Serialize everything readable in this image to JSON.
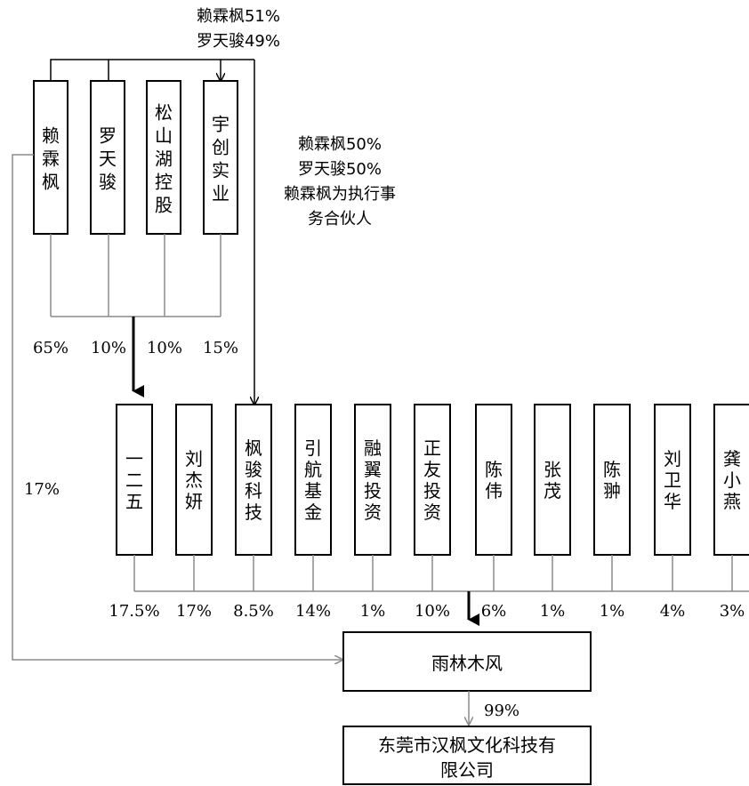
{
  "shareholders_top": [
    {
      "id": "laiminfeng",
      "name": "赖霖枫"
    },
    {
      "id": "luotianjun",
      "name": "罗天骏"
    },
    {
      "id": "songshanhu",
      "name": "松山湖控股"
    },
    {
      "id": "yuchuang",
      "name": "宇创实业"
    }
  ],
  "yuchuang_note": [
    "赖霖枫51%",
    "罗天骏49%"
  ],
  "fengjun_note": [
    "赖霖枫50%",
    "罗天骏50%",
    "赖霖枫为执行事",
    "务合伙人"
  ],
  "top_pcts": [
    "65%",
    "10%",
    "10%",
    "15%"
  ],
  "direct_pct": "17%",
  "shareholders_mid": [
    {
      "id": "yieryiwu",
      "name": "一二五",
      "pct": "17.5%"
    },
    {
      "id": "liujieyan",
      "name": "刘杰妍",
      "pct": "17%"
    },
    {
      "id": "fengjun",
      "name": "枫骏科技",
      "pct": "8.5%"
    },
    {
      "id": "yinhang",
      "name": "引航基金",
      "pct": "14%"
    },
    {
      "id": "rongyi",
      "name": "融翼投资",
      "pct": "1%"
    },
    {
      "id": "zhengyou",
      "name": "正友投资",
      "pct": "10%"
    },
    {
      "id": "chenwei",
      "name": "陈伟",
      "pct": "6%"
    },
    {
      "id": "zhangmao",
      "name": "张茂",
      "pct": "1%"
    },
    {
      "id": "chenpan",
      "name": "陈翀",
      "pct": "1%"
    },
    {
      "id": "liuweihua",
      "name": "刘卫华",
      "pct": "4%"
    },
    {
      "id": "gongxiaoyan",
      "name": "龚小燕",
      "pct": "3%"
    }
  ],
  "yulin": {
    "name": "雨林木风"
  },
  "yulin_pct": "99%",
  "hanfeng": {
    "lines": [
      "东莞市汉枫文化科技有",
      "限公司"
    ]
  }
}
